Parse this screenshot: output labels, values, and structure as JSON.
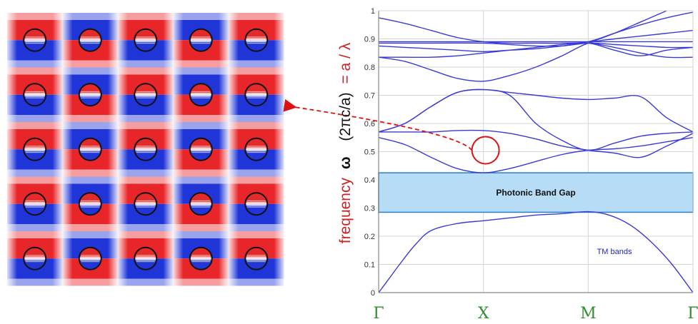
{
  "chart_data": {
    "type": "line",
    "title": "",
    "ylabel_prefix": "frequency",
    "ylabel_omega": "ω",
    "ylabel_middle": "(2πc/a)",
    "ylabel_suffix": "= a / λ",
    "xlabel": "",
    "ylim": [
      0,
      1
    ],
    "yticks": [
      "0",
      "0.1",
      "0.2",
      "0.3",
      "0.4",
      "0.5",
      "0.6",
      "0.7",
      "0.8",
      "0.9",
      "1"
    ],
    "xticks": [
      "Γ",
      "X",
      "M",
      "Γ"
    ],
    "grid": true,
    "band_gap": {
      "label": "Photonic Band Gap",
      "from": 0.285,
      "to": 0.425
    },
    "bands_label": "TM bands",
    "highlight": {
      "x": 1.02,
      "y": 0.505
    },
    "series": [
      {
        "x": [
          0,
          0.1,
          0.2,
          0.35,
          0.5,
          0.75,
          1,
          1.25,
          1.5,
          1.75,
          2,
          2.2,
          2.4,
          2.6,
          2.8,
          3
        ],
        "y": [
          0,
          0.05,
          0.1,
          0.17,
          0.22,
          0.245,
          0.255,
          0.265,
          0.275,
          0.28,
          0.287,
          0.275,
          0.24,
          0.18,
          0.1,
          0
        ]
      },
      {
        "x": [
          0,
          0.25,
          0.5,
          0.75,
          1,
          1.25,
          1.5,
          1.75,
          2,
          2.25,
          2.5,
          2.75,
          3
        ],
        "y": [
          0.55,
          0.525,
          0.48,
          0.44,
          0.425,
          0.44,
          0.465,
          0.49,
          0.505,
          0.51,
          0.52,
          0.535,
          0.55
        ]
      },
      {
        "x": [
          0,
          0.25,
          0.5,
          0.75,
          1,
          1.25,
          1.5,
          1.75,
          2,
          2.25,
          2.5,
          2.75,
          3
        ],
        "y": [
          0.57,
          0.57,
          0.57,
          0.575,
          0.575,
          0.565,
          0.545,
          0.52,
          0.505,
          0.495,
          0.48,
          0.52,
          0.565
        ]
      },
      {
        "x": [
          0,
          0.25,
          0.5,
          0.75,
          1,
          1.25,
          1.5,
          1.75,
          2,
          2.25,
          2.5,
          2.75,
          3
        ],
        "y": [
          0.57,
          0.6,
          0.66,
          0.71,
          0.72,
          0.7,
          0.6,
          0.54,
          0.505,
          0.53,
          0.555,
          0.565,
          0.57
        ]
      },
      {
        "x": [
          0,
          0.25,
          0.5,
          0.75,
          1,
          1.25,
          1.5,
          1.75,
          2,
          2.25,
          2.5,
          2.75,
          3
        ],
        "y": [
          0.57,
          0.6,
          0.66,
          0.71,
          0.72,
          0.71,
          0.7,
          0.69,
          0.685,
          0.69,
          0.695,
          0.62,
          0.57
        ]
      },
      {
        "x": [
          0,
          0.25,
          0.5,
          0.75,
          1,
          1.25,
          1.5,
          1.75,
          2,
          2.25,
          2.5,
          2.75,
          3
        ],
        "y": [
          0.835,
          0.82,
          0.79,
          0.76,
          0.75,
          0.77,
          0.8,
          0.84,
          0.885,
          0.9,
          0.91,
          0.92,
          0.93
        ]
      },
      {
        "x": [
          0,
          0.25,
          0.5,
          0.75,
          1,
          1.25,
          1.5,
          1.75,
          2,
          2.25,
          2.5,
          2.75,
          3
        ],
        "y": [
          0.835,
          0.835,
          0.835,
          0.84,
          0.85,
          0.86,
          0.87,
          0.88,
          0.885,
          0.87,
          0.85,
          0.835,
          0.835
        ]
      },
      {
        "x": [
          0,
          0.25,
          0.5,
          0.75,
          1,
          1.25,
          1.5,
          1.75,
          2,
          2.25,
          2.5,
          2.75,
          3
        ],
        "y": [
          0.875,
          0.87,
          0.865,
          0.86,
          0.855,
          0.86,
          0.865,
          0.875,
          0.885,
          0.86,
          0.84,
          0.86,
          0.87
        ]
      },
      {
        "x": [
          0,
          0.25,
          0.5,
          0.75,
          1,
          1.25,
          1.5,
          1.75,
          2,
          2.25,
          2.5,
          2.75,
          3
        ],
        "y": [
          0.975,
          0.955,
          0.93,
          0.905,
          0.89,
          0.885,
          0.885,
          0.885,
          0.89,
          0.92,
          0.95,
          0.975,
          0.995
        ]
      },
      {
        "x": [
          0,
          0.5,
          1,
          1.5,
          2,
          2.5,
          3
        ],
        "y": [
          0.89,
          0.89,
          0.89,
          0.89,
          0.89,
          0.89,
          0.89
        ]
      },
      {
        "x": [
          0,
          0.5,
          1,
          1.25,
          1.5,
          1.75,
          2,
          2.25,
          2.5,
          2.75,
          3
        ],
        "y": [
          0.885,
          0.885,
          0.885,
          0.88,
          0.875,
          0.875,
          0.885,
          0.88,
          0.875,
          0.87,
          0.87
        ]
      },
      {
        "x": [
          2,
          2.25,
          2.5,
          2.75,
          3
        ],
        "y": [
          0.885,
          0.92,
          0.96,
          1.0,
          1.04
        ]
      }
    ]
  },
  "field_map": {
    "rows": 5,
    "cols": 5,
    "color_positive": "#e8262a",
    "color_negative": "#1f35d8"
  },
  "colors": {
    "axis": "#888888",
    "band_line": "#3a3ad8",
    "gap_fill": "#b7dcf6",
    "gap_border": "#2a7fc4",
    "highlight": "#dd1111",
    "arrow": "#dd1111",
    "ylabel_red": "#cc2222",
    "ylabel_black": "#111111"
  }
}
